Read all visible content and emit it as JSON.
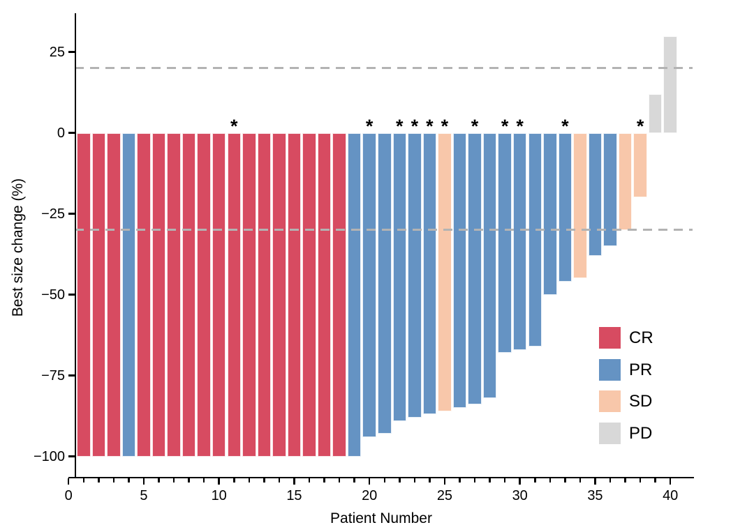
{
  "figure": {
    "background": "#ffffff",
    "axis_color": "#000000"
  },
  "chart_data": {
    "type": "bar",
    "title": "",
    "xlabel": "Patient Number",
    "ylabel": "Best size change (%)",
    "x": [
      1,
      2,
      3,
      4,
      5,
      6,
      7,
      8,
      9,
      10,
      11,
      12,
      13,
      14,
      15,
      16,
      17,
      18,
      19,
      20,
      21,
      22,
      23,
      24,
      25,
      26,
      27,
      28,
      29,
      30,
      31,
      32,
      33,
      34,
      35,
      36,
      37,
      38,
      39,
      40
    ],
    "values": [
      -100,
      -100,
      -100,
      -100,
      -100,
      -100,
      -100,
      -100,
      -100,
      -100,
      -100,
      -100,
      -100,
      -100,
      -100,
      -100,
      -100,
      -100,
      -100,
      -94,
      -93,
      -89,
      -88,
      -87,
      -86,
      -85,
      -84,
      -82,
      -68,
      -67,
      -66,
      -50,
      -46,
      -45,
      -38,
      -35,
      -30,
      -20,
      12,
      30
    ],
    "response": [
      "CR",
      "CR",
      "CR",
      "PR",
      "CR",
      "CR",
      "CR",
      "CR",
      "CR",
      "CR",
      "CR",
      "CR",
      "CR",
      "CR",
      "CR",
      "CR",
      "CR",
      "CR",
      "PR",
      "PR",
      "PR",
      "PR",
      "PR",
      "PR",
      "SD",
      "PR",
      "PR",
      "PR",
      "PR",
      "PR",
      "PR",
      "PR",
      "PR",
      "SD",
      "PR",
      "PR",
      "SD",
      "SD",
      "PD",
      "PD"
    ],
    "starred_patients": [
      11,
      20,
      22,
      23,
      24,
      25,
      27,
      29,
      30,
      33,
      38
    ],
    "star_symbol": "*",
    "xticks": [
      0,
      5,
      10,
      15,
      20,
      25,
      30,
      35,
      40
    ],
    "yticks": [
      25,
      0,
      -25,
      -50,
      -75,
      -100
    ],
    "xlim": [
      -0.5,
      41.5
    ],
    "ylim": [
      -106.5,
      36.5
    ],
    "grid": false,
    "reference_lines": [
      {
        "y": 20,
        "style": "dashed",
        "color": "#b3b3b3"
      },
      {
        "y": -30,
        "style": "dashed",
        "color": "#b3b3b3"
      }
    ],
    "colors": {
      "CR": "#d74b61",
      "PR": "#6593c3",
      "SD": "#f8c7aa",
      "PD": "#d8d8d8"
    },
    "legend": {
      "position": "inside-right",
      "entries": [
        {
          "label": "CR",
          "color": "#d74b61"
        },
        {
          "label": "PR",
          "color": "#6593c3"
        },
        {
          "label": "SD",
          "color": "#f8c7aa"
        },
        {
          "label": "PD",
          "color": "#d8d8d8"
        }
      ]
    }
  }
}
